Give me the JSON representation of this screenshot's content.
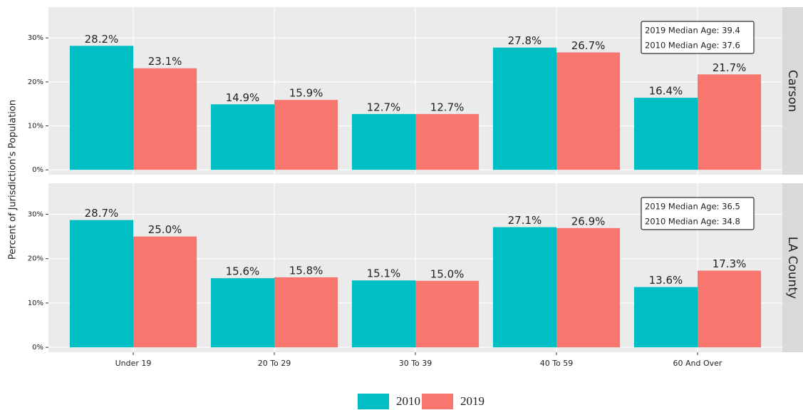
{
  "chart_data": [
    {
      "type": "bar",
      "title": "Carson",
      "y_label": "Percent of Jurisdiction's Population",
      "categories": [
        "Under 19",
        "20 To 29",
        "30 To 39",
        "40 To 59",
        "60 And Over"
      ],
      "series": [
        {
          "name": "2010",
          "color": "#00bfc4",
          "values": [
            28.2,
            14.9,
            12.7,
            27.8,
            16.4
          ],
          "value_labels": [
            "28.2%",
            "14.9%",
            "12.7%",
            "27.8%",
            "16.4%"
          ]
        },
        {
          "name": "2019",
          "color": "#f8766d",
          "values": [
            23.1,
            15.9,
            12.7,
            26.7,
            21.7
          ],
          "value_labels": [
            "23.1%",
            "15.9%",
            "12.7%",
            "26.7%",
            "21.7%"
          ]
        }
      ],
      "ylim": [
        -1.1,
        37
      ],
      "yticks": [
        {
          "value": 0,
          "label": "0%"
        },
        {
          "value": 10,
          "label": "10%"
        },
        {
          "value": 20,
          "label": "20%"
        },
        {
          "value": 30,
          "label": "30%"
        }
      ],
      "grid": true,
      "annotations": [
        "2019 Median Age: 39.4",
        "2010 Median Age: 37.6"
      ]
    },
    {
      "type": "bar",
      "title": "LA County",
      "categories": [
        "Under 19",
        "20 To 29",
        "30 To 39",
        "40 To 59",
        "60 And Over"
      ],
      "series": [
        {
          "name": "2010",
          "color": "#00bfc4",
          "values": [
            28.7,
            15.6,
            15.1,
            27.1,
            13.6
          ],
          "value_labels": [
            "28.7%",
            "15.6%",
            "15.1%",
            "27.1%",
            "13.6%"
          ]
        },
        {
          "name": "2019",
          "color": "#f8766d",
          "values": [
            25.0,
            15.8,
            15.0,
            26.9,
            17.3
          ],
          "value_labels": [
            "25.0%",
            "15.8%",
            "15.0%",
            "26.9%",
            "17.3%"
          ]
        }
      ],
      "ylim": [
        -1.1,
        37
      ],
      "yticks": [
        {
          "value": 0,
          "label": "0%"
        },
        {
          "value": 10,
          "label": "10%"
        },
        {
          "value": 20,
          "label": "20%"
        },
        {
          "value": 30,
          "label": "30%"
        }
      ],
      "grid": true,
      "annotations": [
        "2019 Median Age: 36.5",
        "2010 Median Age: 34.8"
      ]
    }
  ],
  "legend": "bottom"
}
